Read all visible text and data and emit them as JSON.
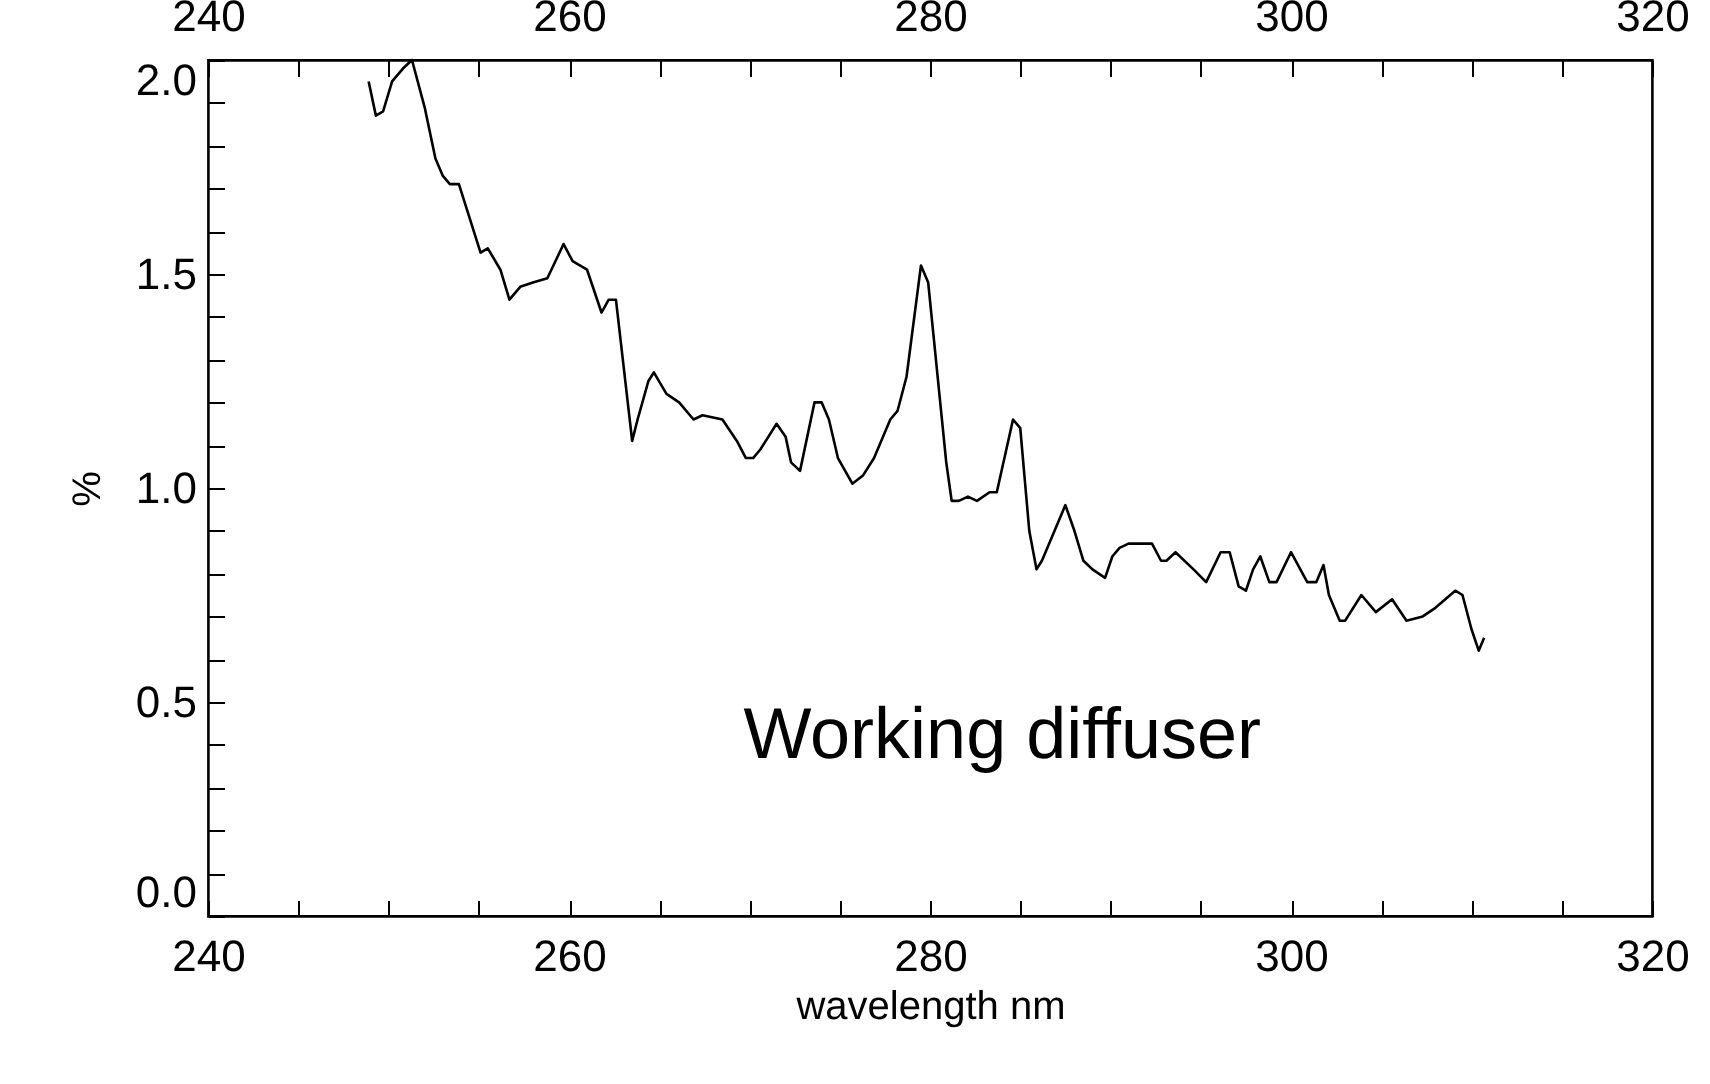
{
  "chart_data": {
    "type": "line",
    "xlabel": "wavelength nm",
    "ylabel": "%",
    "x": [
      248.9,
      249.3,
      249.7,
      250.2,
      250.8,
      251.3,
      252.0,
      252.6,
      253.0,
      253.4,
      253.9,
      254.5,
      255.1,
      255.5,
      256.2,
      256.7,
      257.3,
      258.0,
      258.8,
      259.7,
      260.2,
      261.0,
      261.8,
      262.2,
      262.6,
      263.5,
      263.8,
      264.4,
      264.7,
      265.4,
      266.1,
      266.9,
      267.4,
      268.5,
      269.3,
      269.8,
      270.2,
      270.6,
      271.5,
      272.0,
      272.3,
      272.8,
      273.6,
      274.0,
      274.4,
      274.9,
      275.7,
      276.3,
      276.9,
      277.8,
      278.2,
      278.7,
      279.5,
      279.9,
      280.9,
      281.2,
      281.6,
      282.1,
      282.6,
      283.3,
      283.7,
      284.6,
      285.0,
      285.5,
      285.9,
      286.2,
      287.5,
      288.0,
      288.5,
      289.0,
      289.7,
      290.1,
      290.5,
      291.0,
      292.3,
      292.8,
      293.1,
      293.6,
      294.6,
      295.3,
      296.1,
      296.6,
      297.1,
      297.5,
      297.9,
      298.3,
      298.8,
      299.2,
      300.0,
      300.9,
      301.4,
      301.8,
      302.1,
      302.7,
      303.0,
      303.9,
      304.7,
      305.6,
      306.4,
      307.3,
      308.0,
      309.1,
      309.5,
      310.0,
      310.4,
      310.7
    ],
    "series": [
      {
        "color": "#000000",
        "values": [
          1.95,
          1.87,
          1.88,
          1.95,
          1.98,
          2.0,
          1.89,
          1.77,
          1.73,
          1.71,
          1.71,
          1.63,
          1.55,
          1.56,
          1.51,
          1.44,
          1.47,
          1.48,
          1.49,
          1.57,
          1.53,
          1.51,
          1.41,
          1.44,
          1.44,
          1.11,
          1.16,
          1.25,
          1.27,
          1.22,
          1.2,
          1.16,
          1.17,
          1.16,
          1.11,
          1.07,
          1.07,
          1.09,
          1.15,
          1.12,
          1.06,
          1.04,
          1.2,
          1.2,
          1.16,
          1.07,
          1.01,
          1.03,
          1.07,
          1.16,
          1.18,
          1.26,
          1.52,
          1.48,
          1.06,
          0.97,
          0.97,
          0.98,
          0.97,
          0.99,
          0.99,
          1.16,
          1.14,
          0.9,
          0.81,
          0.83,
          0.96,
          0.9,
          0.83,
          0.81,
          0.79,
          0.84,
          0.86,
          0.87,
          0.87,
          0.83,
          0.83,
          0.85,
          0.81,
          0.78,
          0.85,
          0.85,
          0.77,
          0.76,
          0.81,
          0.84,
          0.78,
          0.78,
          0.85,
          0.78,
          0.78,
          0.82,
          0.75,
          0.69,
          0.69,
          0.75,
          0.71,
          0.74,
          0.69,
          0.7,
          0.72,
          0.76,
          0.75,
          0.67,
          0.62,
          0.65
        ]
      }
    ],
    "xlim": [
      240,
      320
    ],
    "xticks": [
      240,
      {
        "value": 245,
        "label": null
      },
      {
        "value": 250,
        "label": null
      },
      {
        "value": 255,
        "label": null
      },
      260,
      {
        "value": 265,
        "label": null
      },
      {
        "value": 270,
        "label": null
      },
      {
        "value": 275,
        "label": null
      },
      280,
      {
        "value": 285,
        "label": null
      },
      {
        "value": 290,
        "label": null
      },
      {
        "value": 295,
        "label": null
      },
      300,
      {
        "value": 305,
        "label": null
      },
      {
        "value": 310,
        "label": null
      },
      {
        "value": 315,
        "label": null
      },
      320
    ],
    "x2lim": [
      240,
      320
    ],
    "x2ticks": [
      240,
      {
        "value": 245,
        "label": null
      },
      {
        "value": 250,
        "label": null
      },
      {
        "value": 255,
        "label": null
      },
      260,
      {
        "value": 265,
        "label": null
      },
      {
        "value": 270,
        "label": null
      },
      {
        "value": 275,
        "label": null
      },
      280,
      {
        "value": 285,
        "label": null
      },
      {
        "value": 290,
        "label": null
      },
      {
        "value": 295,
        "label": null
      },
      300,
      {
        "value": 305,
        "label": null
      },
      {
        "value": 310,
        "label": null
      },
      {
        "value": 315,
        "label": null
      },
      320
    ],
    "ylim": [
      0,
      2.0
    ],
    "yticks": [
      {
        "value": 0,
        "label": "0.0"
      },
      {
        "value": 0.1,
        "label": null
      },
      {
        "value": 0.2,
        "label": null
      },
      {
        "value": 0.3,
        "label": null
      },
      {
        "value": 0.4,
        "label": null
      },
      0.5,
      {
        "value": 0.6,
        "label": null
      },
      {
        "value": 0.7,
        "label": null
      },
      {
        "value": 0.8,
        "label": null
      },
      {
        "value": 0.9,
        "label": null
      },
      {
        "value": 1.0,
        "label": "1.0"
      },
      {
        "value": 1.1,
        "label": null
      },
      {
        "value": 1.2,
        "label": null
      },
      {
        "value": 1.3,
        "label": null
      },
      {
        "value": 1.4,
        "label": null
      },
      1.5,
      {
        "value": 1.6,
        "label": null
      },
      {
        "value": 1.7,
        "label": null
      },
      {
        "value": 1.8,
        "label": null
      },
      {
        "value": 1.9,
        "label": null
      },
      {
        "value": 2.0,
        "label": "2.0"
      }
    ],
    "grid": false,
    "marker": "none",
    "line_style": "solid",
    "annotations": [
      "Working diffuser"
    ]
  }
}
